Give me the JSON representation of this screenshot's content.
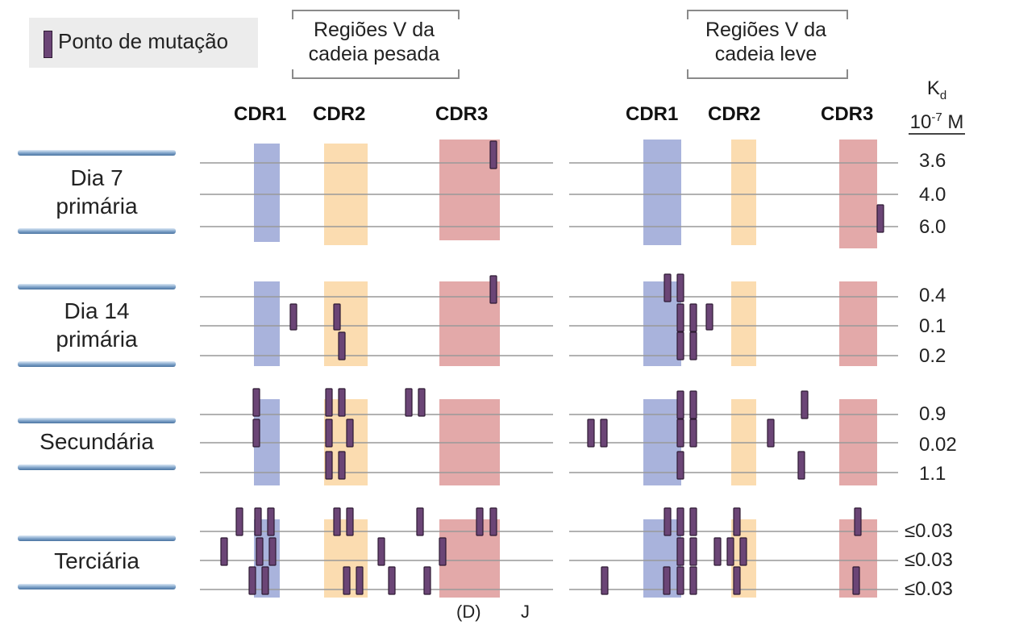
{
  "legend": {
    "swatch_color": "#6b4576",
    "label": "Ponto de mutação"
  },
  "regions": {
    "heavy": {
      "label_line1": "Regiões V da",
      "label_line2": "cadeia pesada"
    },
    "light": {
      "label_line1": "Regiões V da",
      "label_line2": "cadeia leve"
    }
  },
  "cdr_labels": {
    "cdr1": "CDR1",
    "cdr2": "CDR2",
    "cdr3": "CDR3"
  },
  "kd_header": {
    "symbol": "K",
    "subscript": "d",
    "unit_base": "10",
    "unit_exp": "-7",
    "unit_suffix": " M"
  },
  "colors": {
    "cdr1": "#a9b3dc",
    "cdr2": "#fbdcb0",
    "cdr3": "#e3a9a9",
    "mutation": "#6b4576",
    "line": "#999999"
  },
  "stages": [
    {
      "line1": "Dia 7",
      "line2": "primária",
      "kd": [
        "3.6",
        "4.0",
        "6.0"
      ]
    },
    {
      "line1": "Dia 14",
      "line2": "primária",
      "kd": [
        "0.4",
        "0.1",
        "0.2"
      ]
    },
    {
      "line1": "Secundária",
      "line2": "",
      "kd": [
        "0.9",
        "0.02",
        "1.1"
      ]
    },
    {
      "line1": "Terciária",
      "line2": "",
      "kd": [
        "≤0.03",
        "≤0.03",
        "≤0.03"
      ]
    }
  ],
  "footer": {
    "d_label": "(D)",
    "j_label": "J"
  }
}
